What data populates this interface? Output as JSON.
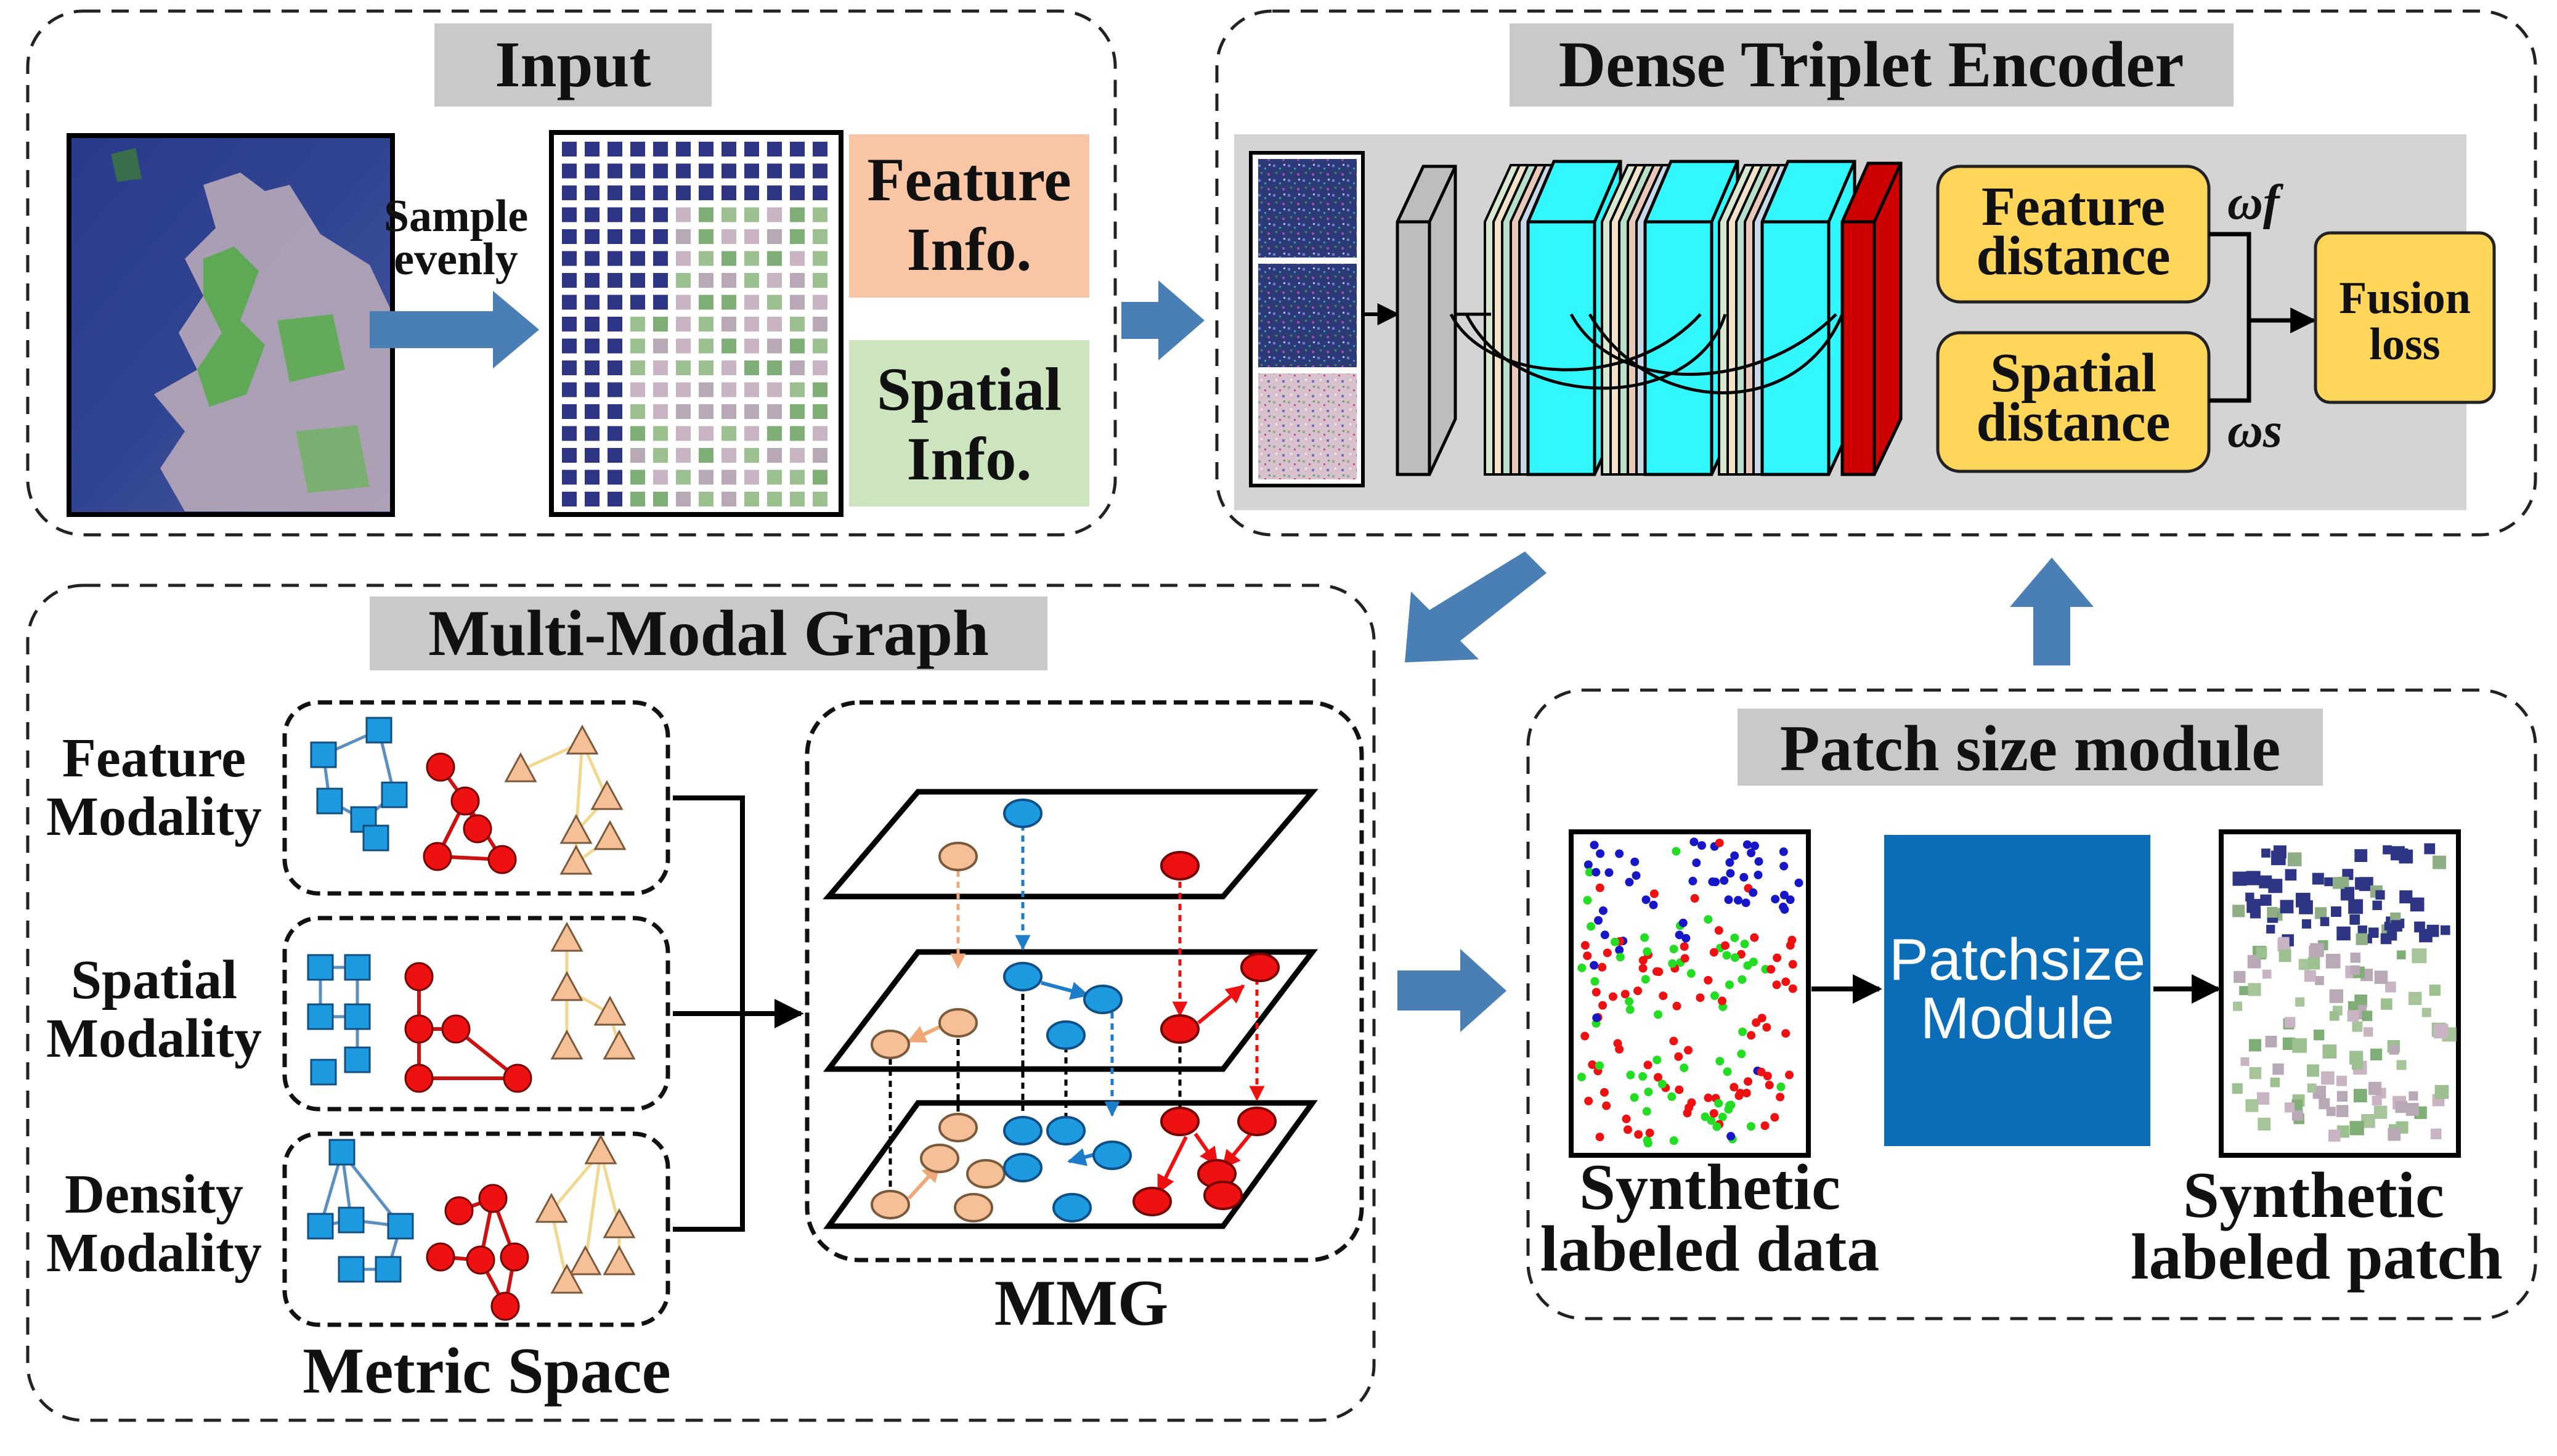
{
  "input": {
    "title": "Input",
    "sample_label_line1": "Sample",
    "sample_label_line2": "evenly",
    "feature_info_line1": "Feature",
    "feature_info_line2": "Info.",
    "spatial_info_line1": "Spatial",
    "spatial_info_line2": "Info."
  },
  "encoder": {
    "title": "Dense Triplet Encoder",
    "feature_distance_line1": "Feature",
    "feature_distance_line2": "distance",
    "spatial_distance_line1": "Spatial",
    "spatial_distance_line2": "distance",
    "fusion_loss_line1": "Fusion",
    "fusion_loss_line2": "loss",
    "weight_feature": "ωf",
    "weight_spatial": "ωs"
  },
  "graph": {
    "title": "Multi-Modal Graph",
    "feature_modality_line1": "Feature",
    "feature_modality_line2": "Modality",
    "spatial_modality_line1": "Spatial",
    "spatial_modality_line2": "Modality",
    "density_modality_line1": "Density",
    "density_modality_line2": "Modality",
    "metric_space_label": "Metric Space",
    "mmg_label": "MMG"
  },
  "patch": {
    "title": "Patch size module",
    "module_line1": "Patchsize",
    "module_line2": "Module",
    "synthetic_data_line1": "Synthetic",
    "synthetic_data_line2": "labeled data",
    "synthetic_patch_line1": "Synthetic",
    "synthetic_patch_line2": "labeled patch"
  },
  "colors": {
    "arrow_blue": "#4a7fb5",
    "title_bar_gray": "#c9c9c9",
    "encoder_bg": "#d4d4d4",
    "feature_info_bg": "#f8c6a5",
    "spatial_info_bg": "#cde5bf",
    "distance_box": "#ffd55a",
    "cyan_layer": "#33f7ff",
    "red_layer": "#cc0000",
    "node_blue": "#1e9be0",
    "node_red": "#e11",
    "node_peach": "#f5bf98",
    "patchsize_module_bg": "#0b6db8",
    "data_blue": "#1717c8",
    "data_green": "#22dd22",
    "data_red": "#ee1111"
  }
}
